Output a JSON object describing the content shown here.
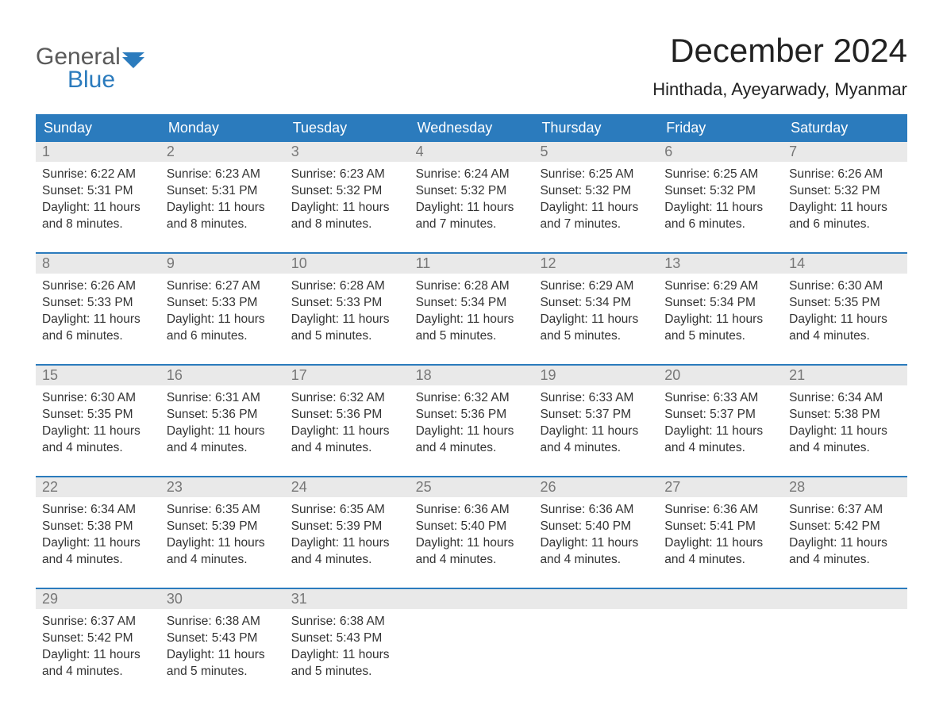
{
  "logo": {
    "general": "General",
    "blue": "Blue"
  },
  "title": "December 2024",
  "location": "Hinthada, Ayeyarwady, Myanmar",
  "colors": {
    "brand_blue": "#2b7bbd",
    "header_text": "#ffffff",
    "day_num_bg": "#e9e9e9",
    "day_num_text": "#777777",
    "body_text": "#333333",
    "logo_gray": "#5a5a5a"
  },
  "headers": [
    "Sunday",
    "Monday",
    "Tuesday",
    "Wednesday",
    "Thursday",
    "Friday",
    "Saturday"
  ],
  "weeks": [
    [
      {
        "n": "1",
        "sr": "Sunrise: 6:22 AM",
        "ss": "Sunset: 5:31 PM",
        "d1": "Daylight: 11 hours",
        "d2": "and 8 minutes."
      },
      {
        "n": "2",
        "sr": "Sunrise: 6:23 AM",
        "ss": "Sunset: 5:31 PM",
        "d1": "Daylight: 11 hours",
        "d2": "and 8 minutes."
      },
      {
        "n": "3",
        "sr": "Sunrise: 6:23 AM",
        "ss": "Sunset: 5:32 PM",
        "d1": "Daylight: 11 hours",
        "d2": "and 8 minutes."
      },
      {
        "n": "4",
        "sr": "Sunrise: 6:24 AM",
        "ss": "Sunset: 5:32 PM",
        "d1": "Daylight: 11 hours",
        "d2": "and 7 minutes."
      },
      {
        "n": "5",
        "sr": "Sunrise: 6:25 AM",
        "ss": "Sunset: 5:32 PM",
        "d1": "Daylight: 11 hours",
        "d2": "and 7 minutes."
      },
      {
        "n": "6",
        "sr": "Sunrise: 6:25 AM",
        "ss": "Sunset: 5:32 PM",
        "d1": "Daylight: 11 hours",
        "d2": "and 6 minutes."
      },
      {
        "n": "7",
        "sr": "Sunrise: 6:26 AM",
        "ss": "Sunset: 5:32 PM",
        "d1": "Daylight: 11 hours",
        "d2": "and 6 minutes."
      }
    ],
    [
      {
        "n": "8",
        "sr": "Sunrise: 6:26 AM",
        "ss": "Sunset: 5:33 PM",
        "d1": "Daylight: 11 hours",
        "d2": "and 6 minutes."
      },
      {
        "n": "9",
        "sr": "Sunrise: 6:27 AM",
        "ss": "Sunset: 5:33 PM",
        "d1": "Daylight: 11 hours",
        "d2": "and 6 minutes."
      },
      {
        "n": "10",
        "sr": "Sunrise: 6:28 AM",
        "ss": "Sunset: 5:33 PM",
        "d1": "Daylight: 11 hours",
        "d2": "and 5 minutes."
      },
      {
        "n": "11",
        "sr": "Sunrise: 6:28 AM",
        "ss": "Sunset: 5:34 PM",
        "d1": "Daylight: 11 hours",
        "d2": "and 5 minutes."
      },
      {
        "n": "12",
        "sr": "Sunrise: 6:29 AM",
        "ss": "Sunset: 5:34 PM",
        "d1": "Daylight: 11 hours",
        "d2": "and 5 minutes."
      },
      {
        "n": "13",
        "sr": "Sunrise: 6:29 AM",
        "ss": "Sunset: 5:34 PM",
        "d1": "Daylight: 11 hours",
        "d2": "and 5 minutes."
      },
      {
        "n": "14",
        "sr": "Sunrise: 6:30 AM",
        "ss": "Sunset: 5:35 PM",
        "d1": "Daylight: 11 hours",
        "d2": "and 4 minutes."
      }
    ],
    [
      {
        "n": "15",
        "sr": "Sunrise: 6:30 AM",
        "ss": "Sunset: 5:35 PM",
        "d1": "Daylight: 11 hours",
        "d2": "and 4 minutes."
      },
      {
        "n": "16",
        "sr": "Sunrise: 6:31 AM",
        "ss": "Sunset: 5:36 PM",
        "d1": "Daylight: 11 hours",
        "d2": "and 4 minutes."
      },
      {
        "n": "17",
        "sr": "Sunrise: 6:32 AM",
        "ss": "Sunset: 5:36 PM",
        "d1": "Daylight: 11 hours",
        "d2": "and 4 minutes."
      },
      {
        "n": "18",
        "sr": "Sunrise: 6:32 AM",
        "ss": "Sunset: 5:36 PM",
        "d1": "Daylight: 11 hours",
        "d2": "and 4 minutes."
      },
      {
        "n": "19",
        "sr": "Sunrise: 6:33 AM",
        "ss": "Sunset: 5:37 PM",
        "d1": "Daylight: 11 hours",
        "d2": "and 4 minutes."
      },
      {
        "n": "20",
        "sr": "Sunrise: 6:33 AM",
        "ss": "Sunset: 5:37 PM",
        "d1": "Daylight: 11 hours",
        "d2": "and 4 minutes."
      },
      {
        "n": "21",
        "sr": "Sunrise: 6:34 AM",
        "ss": "Sunset: 5:38 PM",
        "d1": "Daylight: 11 hours",
        "d2": "and 4 minutes."
      }
    ],
    [
      {
        "n": "22",
        "sr": "Sunrise: 6:34 AM",
        "ss": "Sunset: 5:38 PM",
        "d1": "Daylight: 11 hours",
        "d2": "and 4 minutes."
      },
      {
        "n": "23",
        "sr": "Sunrise: 6:35 AM",
        "ss": "Sunset: 5:39 PM",
        "d1": "Daylight: 11 hours",
        "d2": "and 4 minutes."
      },
      {
        "n": "24",
        "sr": "Sunrise: 6:35 AM",
        "ss": "Sunset: 5:39 PM",
        "d1": "Daylight: 11 hours",
        "d2": "and 4 minutes."
      },
      {
        "n": "25",
        "sr": "Sunrise: 6:36 AM",
        "ss": "Sunset: 5:40 PM",
        "d1": "Daylight: 11 hours",
        "d2": "and 4 minutes."
      },
      {
        "n": "26",
        "sr": "Sunrise: 6:36 AM",
        "ss": "Sunset: 5:40 PM",
        "d1": "Daylight: 11 hours",
        "d2": "and 4 minutes."
      },
      {
        "n": "27",
        "sr": "Sunrise: 6:36 AM",
        "ss": "Sunset: 5:41 PM",
        "d1": "Daylight: 11 hours",
        "d2": "and 4 minutes."
      },
      {
        "n": "28",
        "sr": "Sunrise: 6:37 AM",
        "ss": "Sunset: 5:42 PM",
        "d1": "Daylight: 11 hours",
        "d2": "and 4 minutes."
      }
    ],
    [
      {
        "n": "29",
        "sr": "Sunrise: 6:37 AM",
        "ss": "Sunset: 5:42 PM",
        "d1": "Daylight: 11 hours",
        "d2": "and 4 minutes."
      },
      {
        "n": "30",
        "sr": "Sunrise: 6:38 AM",
        "ss": "Sunset: 5:43 PM",
        "d1": "Daylight: 11 hours",
        "d2": "and 5 minutes."
      },
      {
        "n": "31",
        "sr": "Sunrise: 6:38 AM",
        "ss": "Sunset: 5:43 PM",
        "d1": "Daylight: 11 hours",
        "d2": "and 5 minutes."
      },
      {
        "n": "",
        "sr": "",
        "ss": "",
        "d1": "",
        "d2": ""
      },
      {
        "n": "",
        "sr": "",
        "ss": "",
        "d1": "",
        "d2": ""
      },
      {
        "n": "",
        "sr": "",
        "ss": "",
        "d1": "",
        "d2": ""
      },
      {
        "n": "",
        "sr": "",
        "ss": "",
        "d1": "",
        "d2": ""
      }
    ]
  ]
}
